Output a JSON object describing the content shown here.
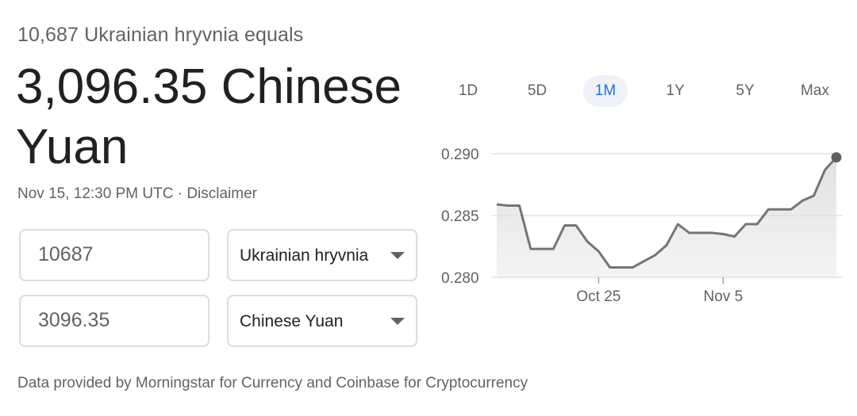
{
  "conversion": {
    "subtitle": "10,687 Ukrainian hryvnia equals",
    "result": "3,096.35 Chinese Yuan",
    "timestamp": "Nov 15, 12:30 PM UTC",
    "separator": "·",
    "disclaimer": "Disclaimer"
  },
  "inputs": {
    "from_amount": "10687",
    "from_currency": "Ukrainian hryvnia",
    "to_amount": "3096.35",
    "to_currency": "Chinese Yuan"
  },
  "ranges": [
    "1D",
    "5D",
    "1M",
    "1Y",
    "5Y",
    "Max"
  ],
  "active_range": "1M",
  "footer": "Data provided by Morningstar for Currency and Coinbase for Cryptocurrency",
  "colors": {
    "line": "#757575",
    "fill": "#e0e0e0",
    "grid": "#dadce0",
    "active_tab_bg": "#eef2f8",
    "active_tab_text": "#1a73e8"
  },
  "chart_data": {
    "type": "area",
    "x": [
      "Oct 16",
      "Oct 17",
      "Oct 18",
      "Oct 19",
      "Oct 20",
      "Oct 21",
      "Oct 22",
      "Oct 23",
      "Oct 24",
      "Oct 25",
      "Oct 26",
      "Oct 27",
      "Oct 28",
      "Oct 29",
      "Oct 30",
      "Oct 31",
      "Nov 1",
      "Nov 2",
      "Nov 3",
      "Nov 4",
      "Nov 5",
      "Nov 6",
      "Nov 7",
      "Nov 8",
      "Nov 9",
      "Nov 10",
      "Nov 11",
      "Nov 12",
      "Nov 13",
      "Nov 14",
      "Nov 15"
    ],
    "values": [
      0.2859,
      0.2858,
      0.2858,
      0.2823,
      0.2823,
      0.2823,
      0.2842,
      0.2842,
      0.2829,
      0.2821,
      0.2808,
      0.2808,
      0.2808,
      0.2813,
      0.2818,
      0.2826,
      0.2843,
      0.2836,
      0.2836,
      0.2836,
      0.2835,
      0.2833,
      0.2843,
      0.2843,
      0.2855,
      0.2855,
      0.2855,
      0.2862,
      0.2866,
      0.2887,
      0.2897
    ],
    "y_ticks": [
      "0.290",
      "0.285",
      "0.280"
    ],
    "x_ticks": [
      "Oct 25",
      "Nov 5"
    ],
    "ylim": [
      0.28,
      0.29
    ],
    "grid": true,
    "end_marker": true
  }
}
